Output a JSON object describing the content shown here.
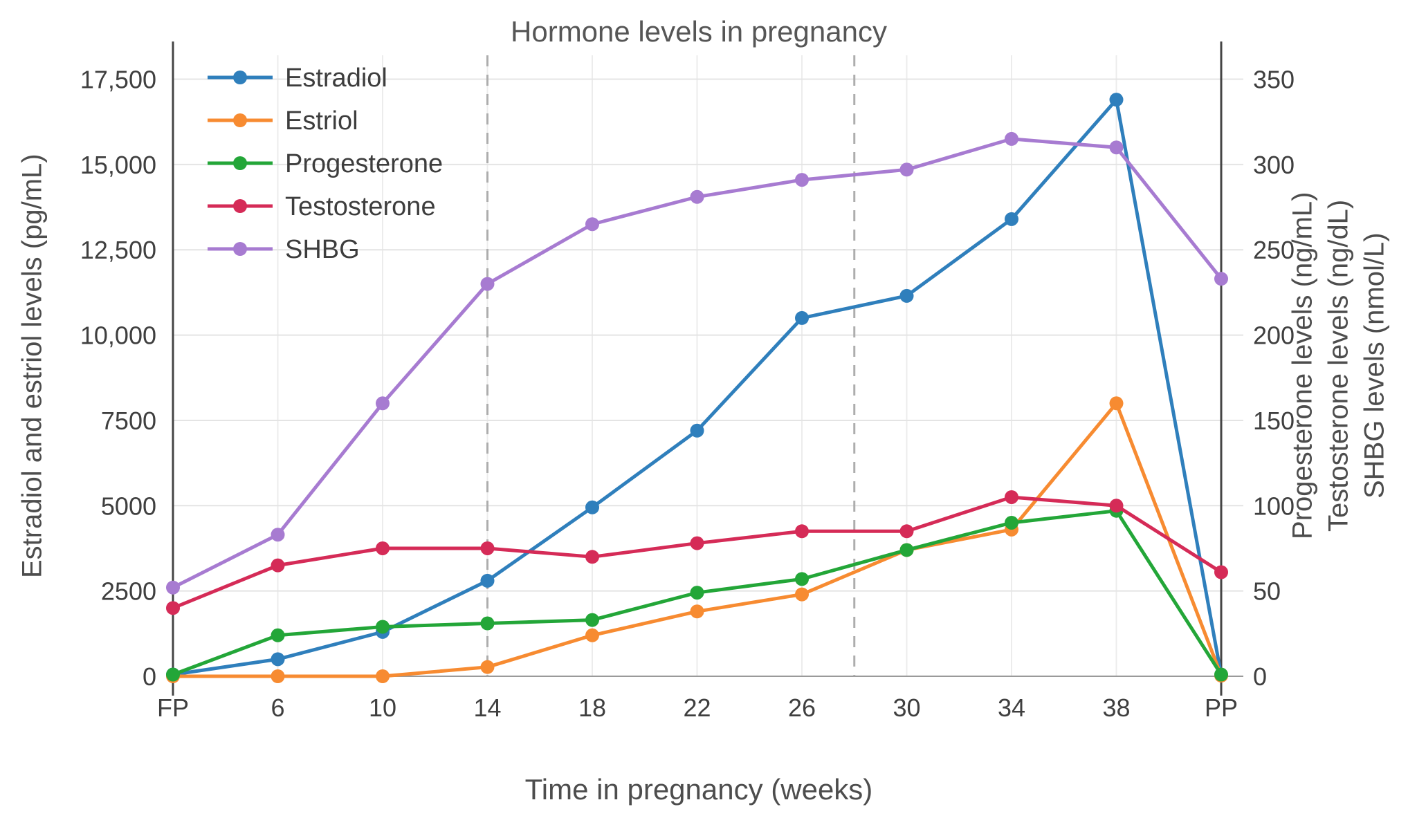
{
  "chart_data": {
    "type": "line",
    "title": "Hormone levels in pregnancy",
    "xlabel": "Time in pregnancy (weeks)",
    "ylabel_left": "Estradiol and estriol levels (pg/mL)",
    "ylabel_right": [
      "Progesterone levels (ng/mL)",
      "Testosterone levels (ng/dL)",
      "SHBG levels (nmol/L)"
    ],
    "categories": [
      "FP",
      "6",
      "10",
      "14",
      "18",
      "22",
      "26",
      "30",
      "34",
      "38",
      "PP"
    ],
    "left_axis": {
      "range": [
        0,
        18200
      ],
      "ticks": [
        0,
        2500,
        5000,
        7500,
        10000,
        12500,
        15000,
        17500
      ],
      "tick_labels": [
        "0",
        "2500",
        "5000",
        "7500",
        "10,000",
        "12,500",
        "15,000",
        "17,500"
      ]
    },
    "right_axis": {
      "range": [
        0,
        364
      ],
      "ticks": [
        0,
        50,
        100,
        150,
        200,
        250,
        300,
        350
      ],
      "tick_labels": [
        "0",
        "50",
        "100",
        "150",
        "200",
        "250",
        "300",
        "350"
      ]
    },
    "grid": true,
    "legend_position": "top-left",
    "dashed_week_dividers": [
      14,
      28
    ],
    "solid_boundary_categories": [
      "FP",
      "PP"
    ],
    "series": [
      {
        "name": "Estradiol",
        "axis": "left",
        "color": "#2f7fbc",
        "values": [
          50,
          500,
          1300,
          2800,
          4950,
          7200,
          10500,
          11150,
          13400,
          16900,
          30
        ]
      },
      {
        "name": "Estriol",
        "axis": "left",
        "color": "#f78b31",
        "values": [
          0,
          0,
          0,
          270,
          1200,
          1900,
          2400,
          3700,
          4300,
          8000,
          20
        ]
      },
      {
        "name": "Progesterone",
        "axis": "right",
        "color": "#23a638",
        "values": [
          1,
          24,
          29,
          31,
          33,
          49,
          57,
          74,
          90,
          97,
          1
        ]
      },
      {
        "name": "Testosterone",
        "axis": "right",
        "color": "#d52b57",
        "values": [
          40,
          65,
          75,
          75,
          70,
          78,
          85,
          85,
          105,
          100,
          61
        ]
      },
      {
        "name": "SHBG",
        "axis": "right",
        "color": "#a77bd1",
        "values": [
          52,
          83,
          160,
          230,
          265,
          281,
          291,
          297,
          315,
          310,
          233
        ]
      }
    ]
  },
  "colors": {
    "grid": "#e4e4e4",
    "grid_vertical": "#ececec",
    "zero_line": "#9a9a9a",
    "dashed_divider": "#adadad",
    "solid_boundary": "#454545",
    "tick_text": "#3f3f3f",
    "title_text": "#565656",
    "axis_title_text": "#4d4d4d",
    "legend_text": "#3d3d3d"
  }
}
